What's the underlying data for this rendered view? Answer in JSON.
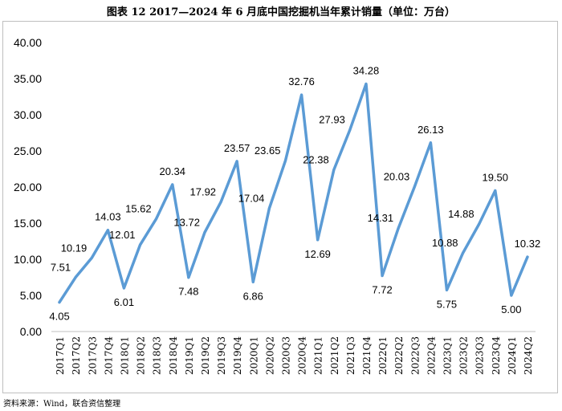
{
  "header": {
    "title": "图表 12   2017—2024 年 6 月底中国挖掘机当年累计销量（单位：万台）"
  },
  "footer": {
    "source": "资料来源：Wind，联合资信整理"
  },
  "colors": {
    "line": "#5b9bd5",
    "axis": "#bfbfbf",
    "frame": "#bfbfbf"
  },
  "chart_data": {
    "type": "line",
    "title": "2017—2024 年 6 月底中国挖掘机当年累计销量（单位：万台）",
    "xlabel": "",
    "ylabel": "",
    "ylim": [
      0,
      40
    ],
    "yticks": [
      "0.00",
      "5.00",
      "10.00",
      "15.00",
      "20.00",
      "25.00",
      "30.00",
      "35.00",
      "40.00"
    ],
    "grid": false,
    "legend": "none",
    "categories": [
      "2017Q1",
      "2017Q2",
      "2017Q3",
      "2017Q4",
      "2018Q1",
      "2018Q2",
      "2018Q3",
      "2018Q4",
      "2019Q1",
      "2019Q2",
      "2019Q3",
      "2019Q4",
      "2020Q1",
      "2020Q2",
      "2020Q3",
      "2020Q4",
      "2021Q1",
      "2021Q2",
      "2021Q3",
      "2021Q4",
      "2022Q1",
      "2022Q2",
      "2022Q3",
      "2022Q4",
      "2023Q1",
      "2023Q2",
      "2023Q3",
      "2023Q4",
      "2024Q1",
      "2024Q2"
    ],
    "values": [
      4.05,
      7.51,
      10.19,
      14.03,
      6.01,
      12.01,
      15.62,
      20.34,
      7.48,
      13.72,
      17.92,
      23.57,
      6.86,
      17.04,
      23.65,
      32.76,
      12.69,
      22.38,
      27.93,
      34.28,
      7.72,
      14.31,
      20.03,
      26.13,
      5.75,
      10.88,
      14.88,
      19.5,
      5.0,
      10.32
    ],
    "labels": [
      "4.05",
      "7.51",
      "10.19",
      "14.03",
      "6.01",
      "12.01",
      "15.62",
      "20.34",
      "7.48",
      "13.72",
      "17.92",
      "23.57",
      "6.86",
      "17.04",
      "23.65",
      "32.76",
      "12.69",
      "22.38",
      "27.93",
      "34.28",
      "7.72",
      "14.31",
      "20.03",
      "26.13",
      "5.75",
      "10.88",
      "14.88",
      "19.50",
      "5.00",
      "10.32"
    ]
  }
}
